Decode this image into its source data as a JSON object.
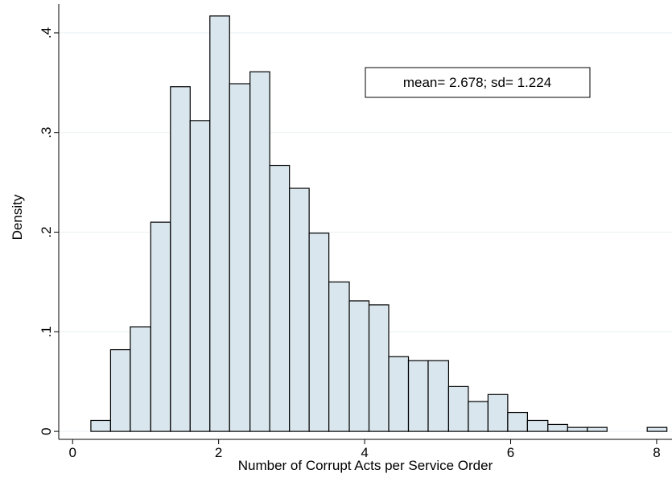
{
  "chart_data": {
    "type": "histogram",
    "xlabel": "Number of Corrupt Acts per Service Order",
    "ylabel": "Density",
    "annotation": "mean= 2.678; sd= 1.224",
    "bins": [
      0.25,
      0.52,
      0.79,
      1.07,
      1.34,
      1.61,
      1.88,
      2.15,
      2.43,
      2.7,
      2.97,
      3.24,
      3.51,
      3.79,
      4.06,
      4.33,
      4.6,
      4.87,
      5.15,
      5.42,
      5.69,
      5.96,
      6.23,
      6.51,
      6.78,
      7.05,
      7.32,
      7.59,
      7.87,
      8.14
    ],
    "counts": [
      0.011,
      0.082,
      0.105,
      0.21,
      0.346,
      0.312,
      0.417,
      0.349,
      0.361,
      0.267,
      0.244,
      0.199,
      0.15,
      0.131,
      0.127,
      0.075,
      0.071,
      0.071,
      0.045,
      0.03,
      0.037,
      0.019,
      0.011,
      0.007,
      0.004,
      0.004,
      0,
      0,
      0.004
    ],
    "color": "#d9e6ed",
    "xlim": [
      -0.19,
      8.21
    ],
    "ylim": [
      -0.008,
      0.429
    ],
    "xticks": [
      0,
      2,
      4,
      6,
      8
    ],
    "yticks": [
      0,
      {
        "value": 0.1,
        "label": ".1"
      },
      {
        "value": 0.2,
        "label": ".2"
      },
      {
        "value": 0.3,
        "label": ".3"
      },
      {
        "value": 0.4,
        "label": ".4"
      }
    ],
    "grid": true
  }
}
